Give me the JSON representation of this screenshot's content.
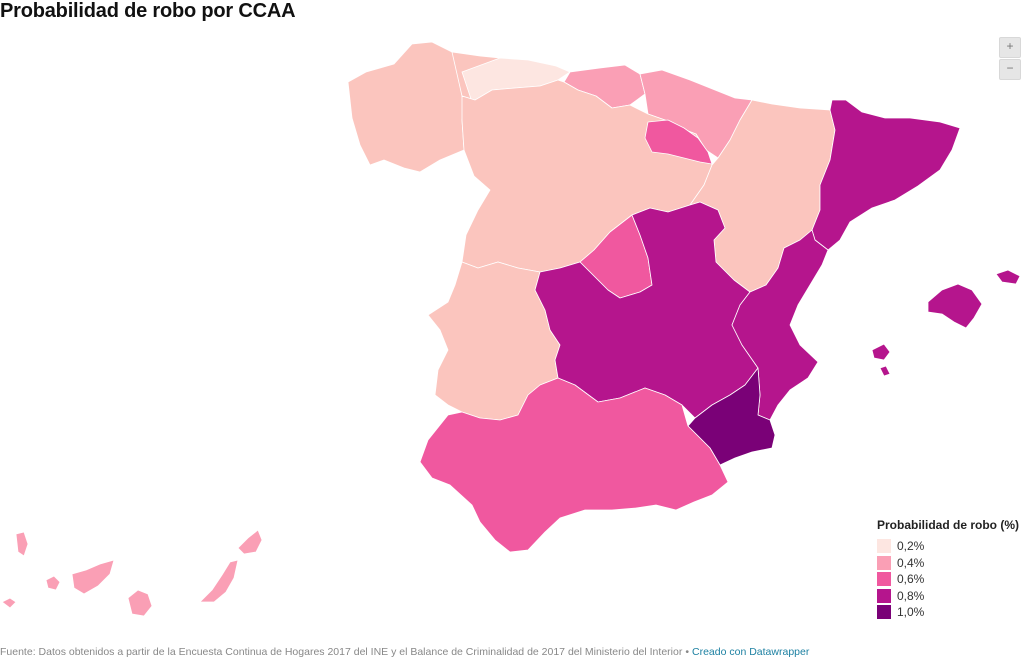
{
  "title": "Probabilidad de robo por CCAA",
  "zoom": {
    "in_label": "+",
    "out_label": "−"
  },
  "legend": {
    "title": "Probabilidad de robo (%)",
    "items": [
      {
        "label": "0,2%",
        "color": "#fde6e1"
      },
      {
        "label": "0,4%",
        "color": "#fa9fb5"
      },
      {
        "label": "0,6%",
        "color": "#f0589f"
      },
      {
        "label": "0,8%",
        "color": "#b5158d"
      },
      {
        "label": "1,0%",
        "color": "#7a0177"
      }
    ]
  },
  "region_colors": {
    "cantabria": "#fde6e1",
    "galicia": "#fbc5be",
    "asturias": "#fbc5be",
    "castilla-leon": "#fbc5be",
    "aragon": "#fbc5be",
    "extremadura": "#fbc5be",
    "pais-vasco": "#fa9fb5",
    "navarra": "#fa9fb5",
    "canarias": "#fa9fb5",
    "la-rioja": "#f0589f",
    "madrid": "#f0589f",
    "andalucia": "#f0589f",
    "cataluna": "#b5158d",
    "castilla-la-mancha": "#b5158d",
    "valencia": "#b5158d",
    "baleares": "#b5158d",
    "murcia": "#7a0177"
  },
  "footer": {
    "source": "Fuente: Datos obtenidos a partir de la Encuesta Continua de Hogares 2017 del INE y el Balance de Criminalidad de 2017 del Ministerio del Interior",
    "separator": "•",
    "credit": "Creado con Datawrapper"
  }
}
